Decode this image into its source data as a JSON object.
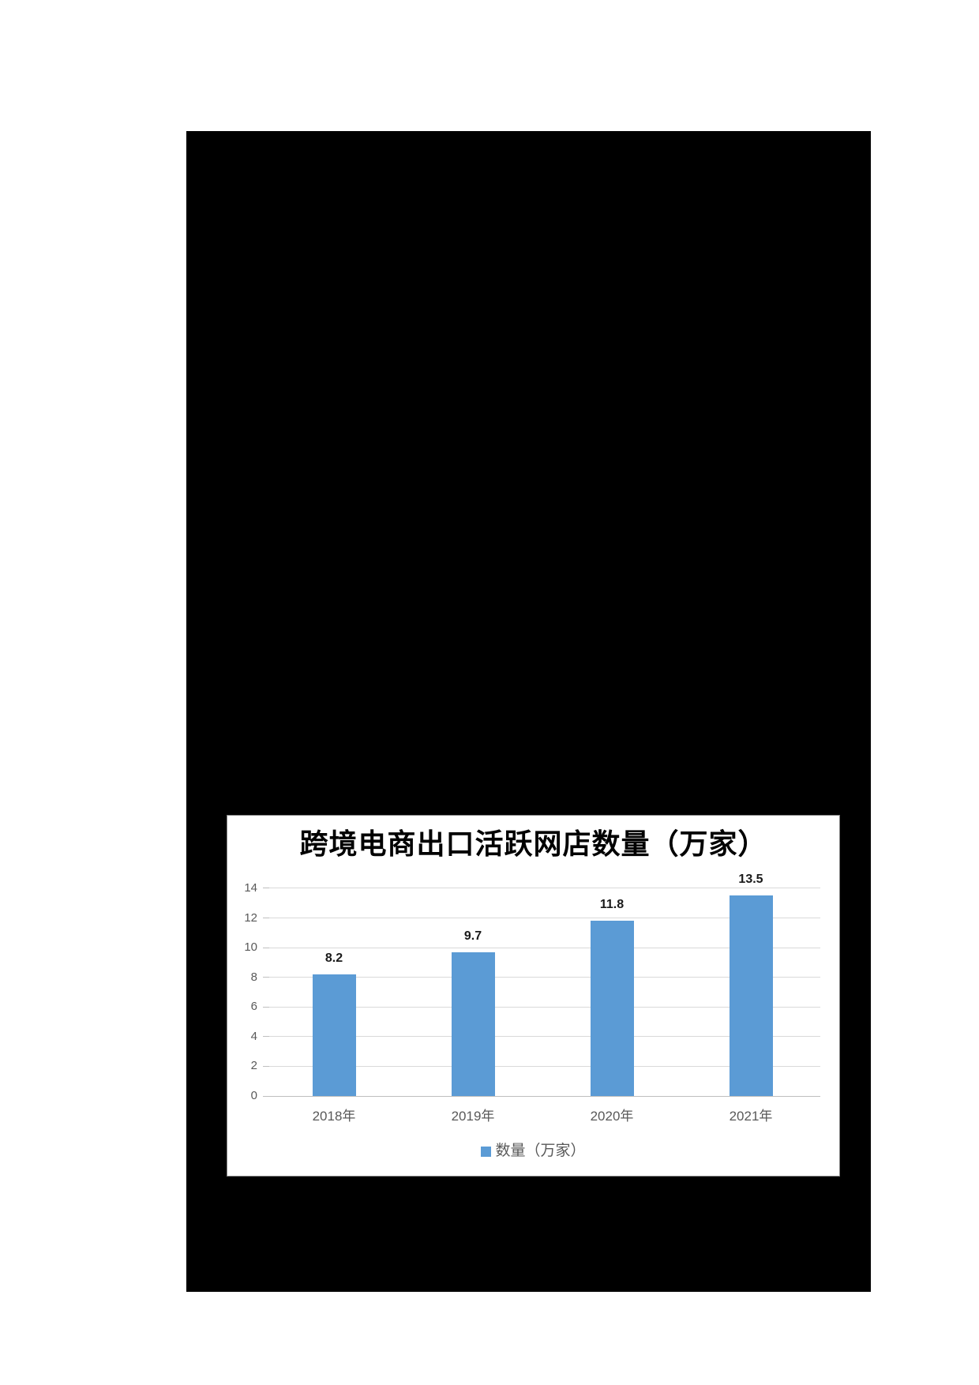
{
  "page": {
    "background_color": "#ffffff",
    "canvas_color": "#000000",
    "panel_color": "#ffffff"
  },
  "chart_data": {
    "type": "bar",
    "title": "跨境电商出口活跃网店数量（万家）",
    "categories": [
      "2018年",
      "2019年",
      "2020年",
      "2021年"
    ],
    "series": [
      {
        "name": "数量（万家）",
        "values": [
          8.2,
          9.7,
          11.8,
          13.5
        ]
      }
    ],
    "data_labels": [
      "8.2",
      "9.7",
      "11.8",
      "13.5"
    ],
    "y_ticks": [
      0,
      2,
      4,
      6,
      8,
      10,
      12,
      14
    ],
    "ylim": [
      0,
      14
    ],
    "xlabel": "",
    "ylabel": "",
    "grid": true,
    "legend_position": "bottom",
    "colors": {
      "bar": "#5B9BD5",
      "gridline": "#D9D9D9",
      "axis": "#BFBFBF",
      "tick_label": "#595959",
      "value_label": "#1a1a1a",
      "title": "#000000"
    }
  },
  "legend": {
    "label": "数量（万家）",
    "swatch_color": "#5B9BD5"
  }
}
